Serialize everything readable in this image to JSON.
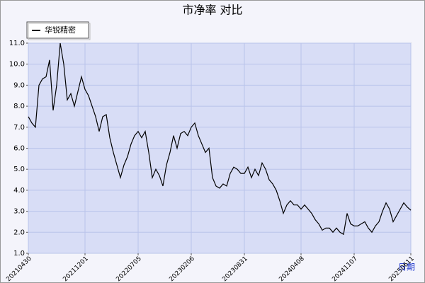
{
  "chart_data": {
    "type": "line",
    "title": "市净率  对比",
    "x_label": "日期",
    "categories": [
      "20210430",
      null,
      null,
      null,
      null,
      null,
      null,
      null,
      null,
      null,
      null,
      null,
      null,
      null,
      null,
      null,
      "20211201",
      null,
      null,
      null,
      null,
      null,
      null,
      null,
      null,
      null,
      null,
      null,
      null,
      null,
      null,
      "20220705",
      null,
      null,
      null,
      null,
      null,
      null,
      null,
      null,
      null,
      null,
      null,
      null,
      null,
      null,
      "20230206",
      null,
      null,
      null,
      null,
      null,
      null,
      null,
      null,
      null,
      null,
      null,
      null,
      null,
      null,
      "20230831",
      null,
      null,
      null,
      null,
      null,
      null,
      null,
      null,
      null,
      null,
      null,
      null,
      null,
      null,
      null,
      "20240408",
      null,
      null,
      null,
      null,
      null,
      null,
      null,
      null,
      null,
      null,
      null,
      null,
      null,
      null,
      "20241107",
      null,
      null,
      null,
      null,
      null,
      null,
      null,
      null,
      null,
      null,
      null,
      null,
      null,
      null,
      null,
      "20250611"
    ],
    "series": [
      {
        "name": "华锐精密",
        "color": "#000000",
        "values": [
          7.5,
          7.2,
          7.0,
          9.0,
          9.3,
          9.4,
          10.2,
          7.8,
          9.0,
          11.0,
          10.0,
          8.3,
          8.6,
          8.0,
          8.7,
          9.4,
          8.8,
          8.5,
          8.0,
          7.5,
          6.8,
          7.5,
          7.6,
          6.5,
          5.8,
          5.2,
          4.6,
          5.2,
          5.6,
          6.2,
          6.6,
          6.8,
          6.5,
          6.8,
          5.8,
          4.6,
          5.0,
          4.7,
          4.2,
          5.2,
          5.8,
          6.6,
          6.0,
          6.7,
          6.8,
          6.6,
          7.0,
          7.2,
          6.6,
          6.2,
          5.8,
          6.0,
          4.6,
          4.2,
          4.1,
          4.3,
          4.2,
          4.8,
          5.1,
          5.0,
          4.8,
          4.8,
          5.1,
          4.6,
          5.0,
          4.7,
          5.3,
          5.0,
          4.5,
          4.3,
          4.0,
          3.5,
          2.9,
          3.3,
          3.5,
          3.3,
          3.3,
          3.1,
          3.3,
          3.1,
          2.9,
          2.6,
          2.4,
          2.1,
          2.2,
          2.2,
          2.0,
          2.2,
          2.0,
          1.9,
          2.9,
          2.4,
          2.3,
          2.3,
          2.4,
          2.5,
          2.2,
          2.0,
          2.3,
          2.5,
          3.0,
          3.4,
          3.1,
          2.5,
          2.8,
          3.1,
          3.4,
          3.2,
          3.05
        ]
      }
    ],
    "ylim": [
      1,
      11
    ],
    "yticks": [
      {
        "value": 1,
        "label": "1.0"
      },
      {
        "value": 2,
        "label": "2.0"
      },
      {
        "value": 3,
        "label": "3.0"
      },
      {
        "value": 4,
        "label": "4.0"
      },
      {
        "value": 5,
        "label": "5.0"
      },
      {
        "value": 6,
        "label": "6.0"
      },
      {
        "value": 7,
        "label": "7.0"
      },
      {
        "value": 8,
        "label": "8.0"
      },
      {
        "value": 9,
        "label": "9.0"
      },
      {
        "value": 10,
        "label": "10.0"
      },
      {
        "value": 11,
        "label": "11.0"
      }
    ],
    "grid": true
  }
}
